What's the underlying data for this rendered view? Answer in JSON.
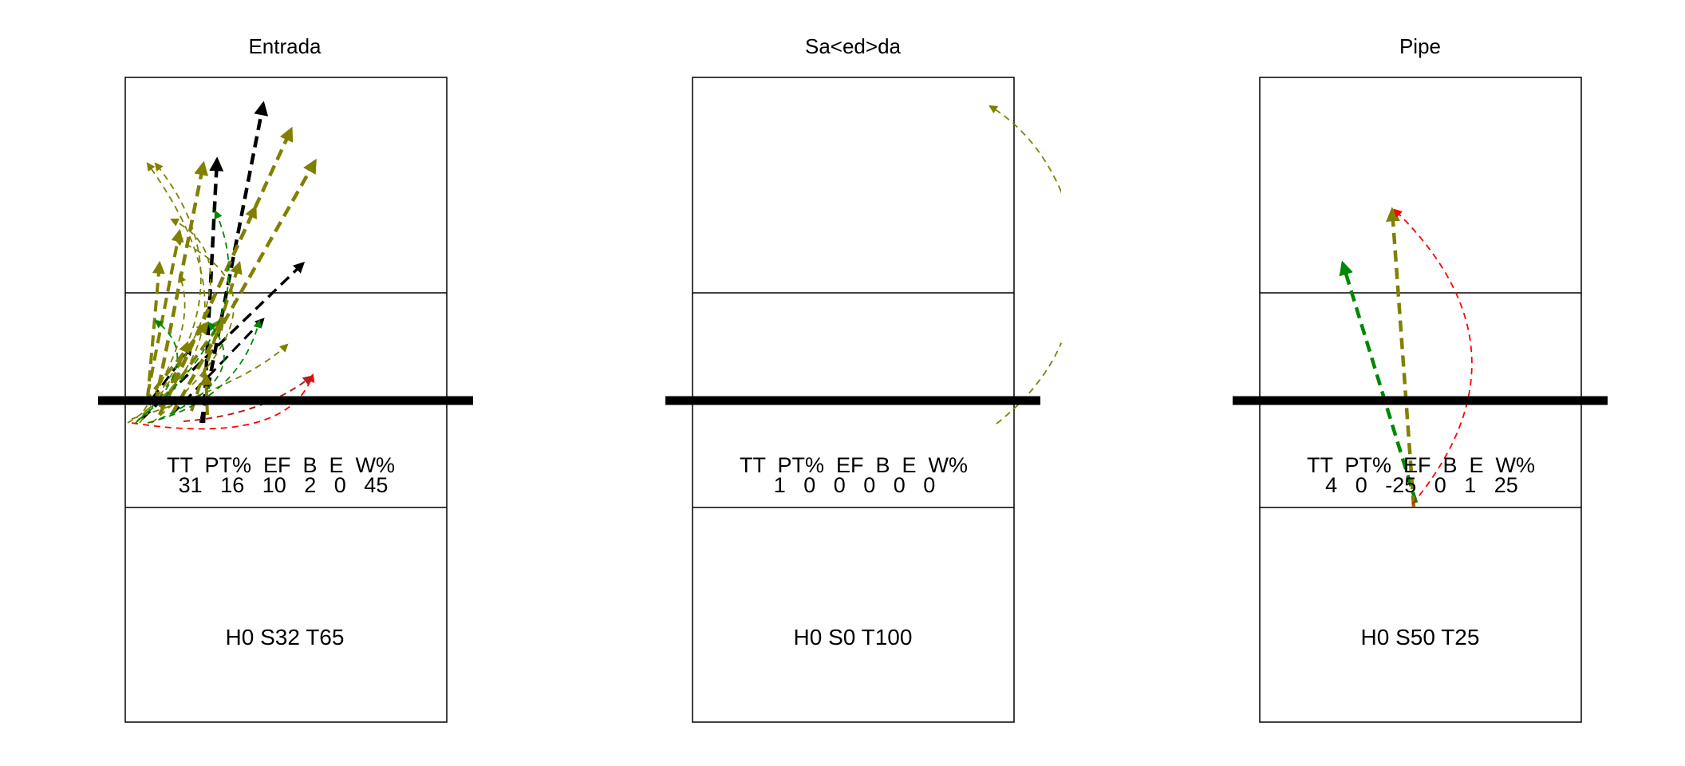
{
  "panels": [
    {
      "title": "Entrada",
      "stats": {
        "header": "TT  PT%  EF  B  E  W%",
        "values": "31   16   10   2   0   45"
      },
      "zones": "H0 S32 T65",
      "arrow_colors": [
        "#000000",
        "#808000",
        "#008800",
        "#cc0000",
        "#b22222"
      ]
    },
    {
      "title": "Sa<ed>da",
      "stats": {
        "header": "TT  PT%  EF  B  E  W%",
        "values": "1   0   0   0   0   0"
      },
      "zones": "H0 S0 T100",
      "arrow_colors": [
        "#808000"
      ]
    },
    {
      "title": "Pipe",
      "stats": {
        "header": "TT  PT%  EF  B  E  W%",
        "values": "4   0   -25   0   1   25"
      },
      "zones": "H0 S50 T25",
      "arrow_colors": [
        "#008800",
        "#808000",
        "#ff0000"
      ]
    }
  ]
}
